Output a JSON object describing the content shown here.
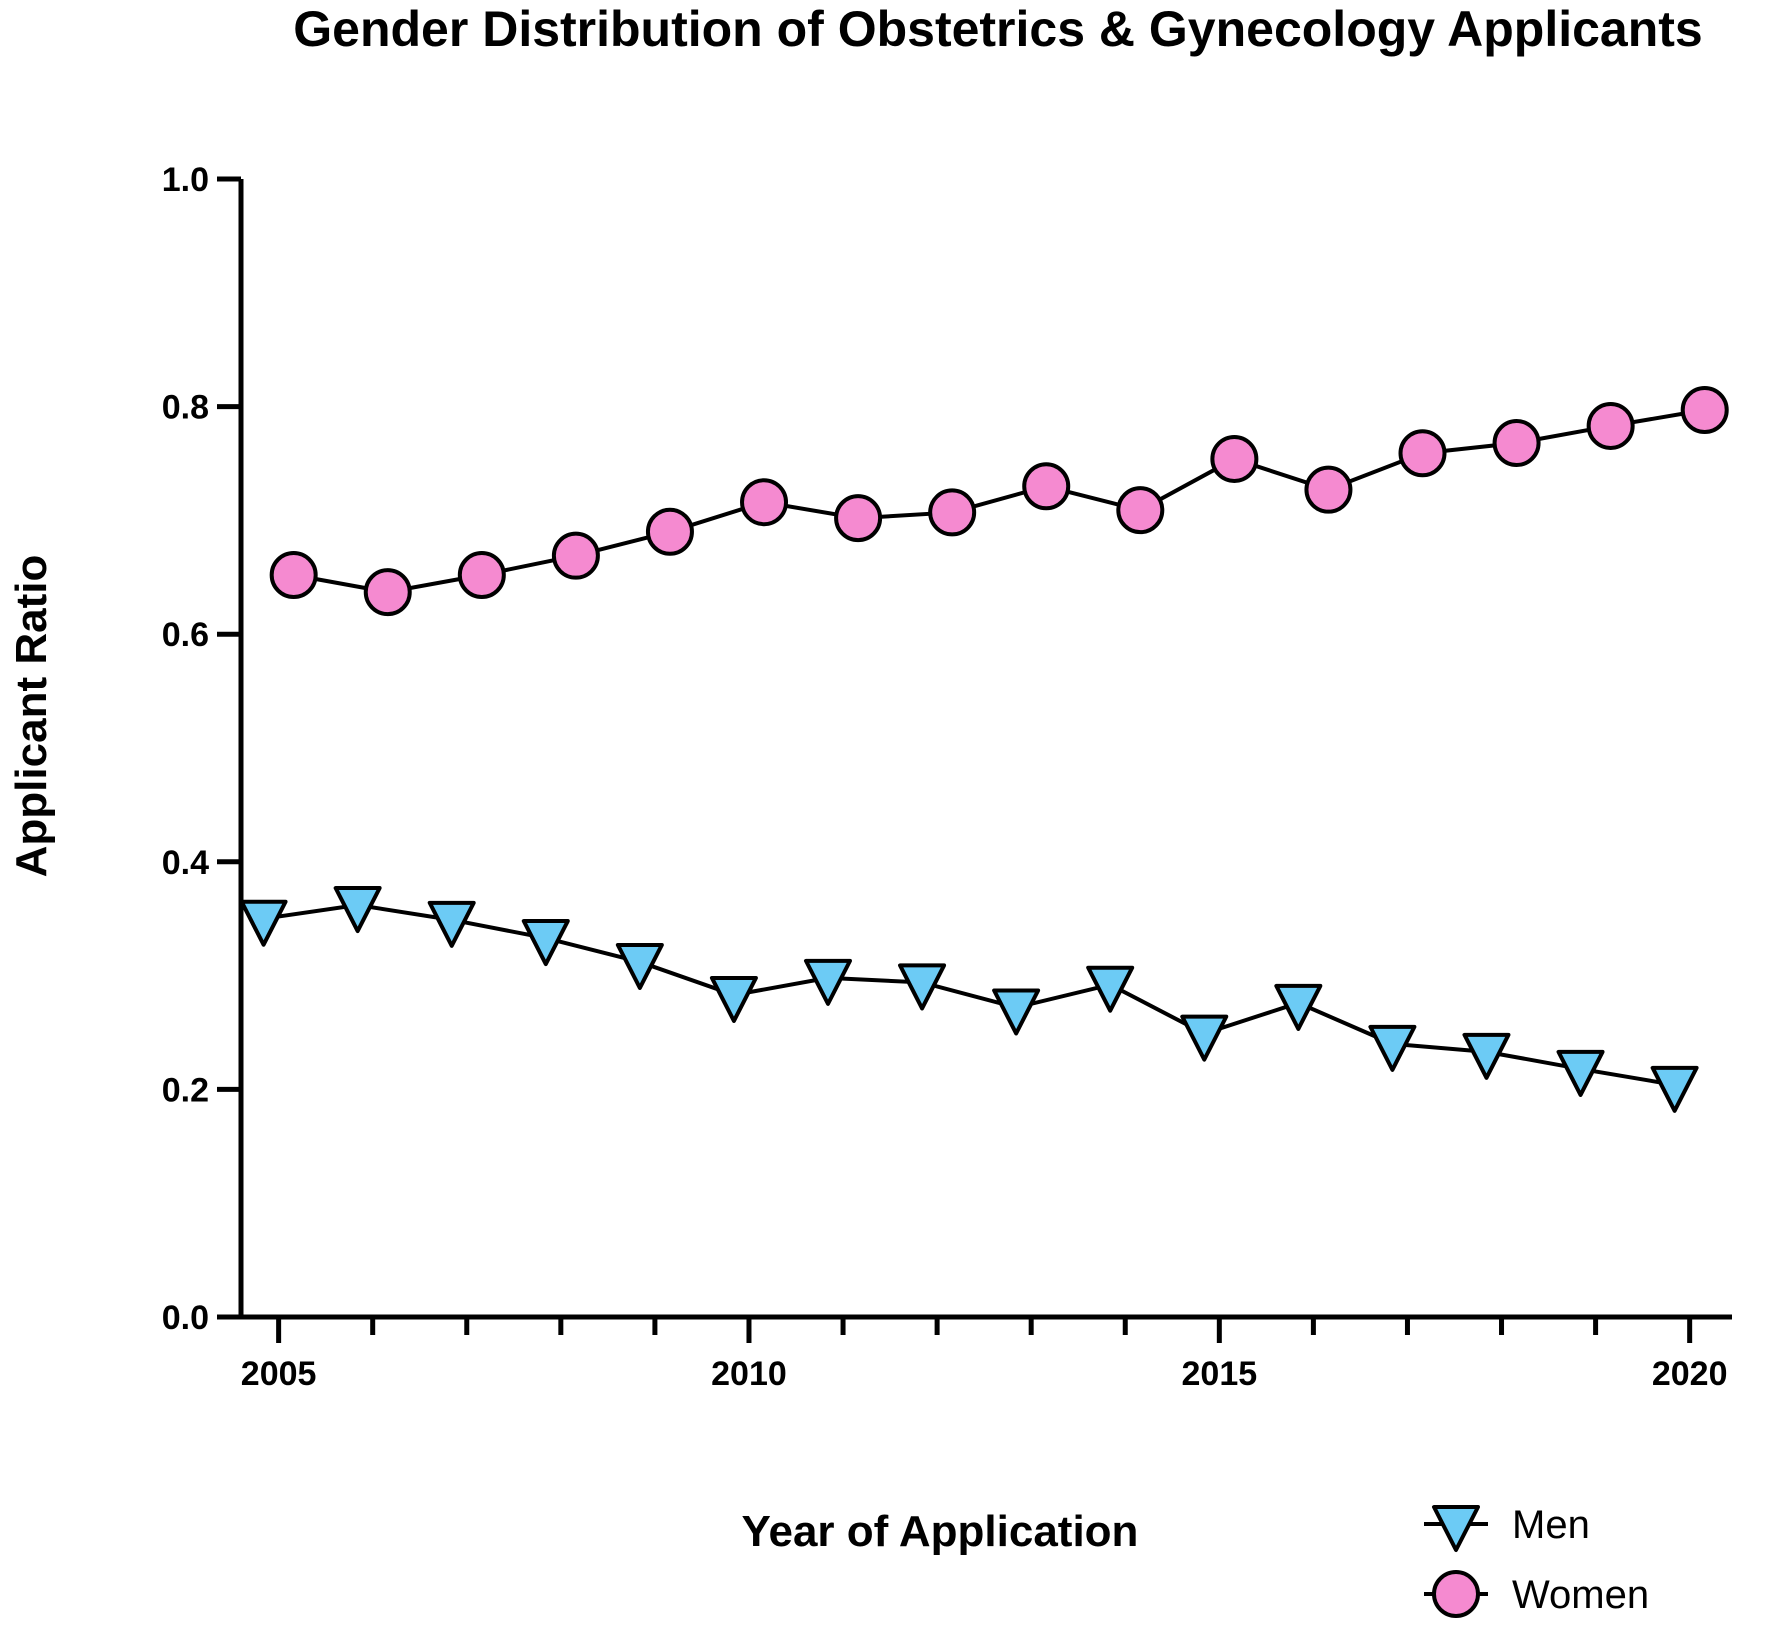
{
  "chart_data": {
    "type": "line",
    "title": "Gender Distribution of Obstetrics & Gynecology Applicants",
    "xlabel": "Year of Application",
    "ylabel": "Applicant Ratio",
    "xlim": [
      2004.6,
      2020.45
    ],
    "ylim": [
      0,
      1
    ],
    "x_ticks": [
      2005,
      2010,
      2015,
      2020
    ],
    "y_ticks": [
      0.0,
      0.2,
      0.4,
      0.6,
      0.8,
      1.0
    ],
    "y_tick_labels": [
      "0.0",
      "0.2",
      "0.4",
      "0.6",
      "0.8",
      "1.0"
    ],
    "x_tick_labels": [
      "2005",
      "2010",
      "2015",
      "2020"
    ],
    "grid": false,
    "legend_position": "bottom-right",
    "series": [
      {
        "name": "Men",
        "marker": "triangle-down",
        "color": "#6ccbf5",
        "x": [
          2004.84,
          2005.84,
          2006.84,
          2007.84,
          2008.84,
          2009.84,
          2010.84,
          2011.84,
          2012.84,
          2013.84,
          2014.84,
          2015.84,
          2016.84,
          2017.84,
          2018.84,
          2019.84
        ],
        "values": [
          0.35,
          0.362,
          0.349,
          0.333,
          0.312,
          0.283,
          0.298,
          0.294,
          0.272,
          0.292,
          0.249,
          0.276,
          0.24,
          0.233,
          0.218,
          0.204
        ]
      },
      {
        "name": "Women",
        "marker": "circle",
        "color": "#f58ad0",
        "x": [
          2005.16,
          2006.16,
          2007.16,
          2008.16,
          2009.16,
          2010.16,
          2011.16,
          2012.16,
          2013.16,
          2014.16,
          2015.16,
          2016.16,
          2017.16,
          2018.16,
          2019.16,
          2020.16
        ],
        "values": [
          0.652,
          0.637,
          0.652,
          0.669,
          0.69,
          0.716,
          0.702,
          0.707,
          0.73,
          0.709,
          0.754,
          0.727,
          0.759,
          0.768,
          0.783,
          0.797
        ]
      }
    ]
  }
}
